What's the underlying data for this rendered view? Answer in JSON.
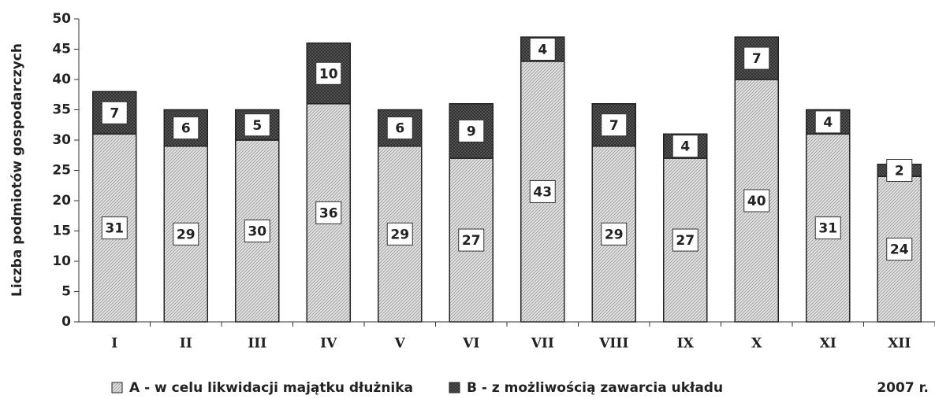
{
  "chart_data": {
    "type": "stacked_bar",
    "ylabel": "Liczba podmiotów gospodarczych",
    "categories": [
      "I",
      "II",
      "III",
      "IV",
      "V",
      "VI",
      "VII",
      "VIII",
      "IX",
      "X",
      "XI",
      "XII"
    ],
    "series": [
      {
        "name": "A - w celu likwidacji majątku dłużnika",
        "color": "#e2e2e2",
        "values": [
          31,
          29,
          30,
          36,
          29,
          27,
          43,
          29,
          27,
          40,
          31,
          24
        ]
      },
      {
        "name": "B - z możliwością zawarcia układu",
        "color": "#5a5a5a",
        "values": [
          7,
          6,
          5,
          10,
          6,
          9,
          4,
          7,
          4,
          7,
          4,
          2
        ]
      }
    ],
    "ylim": [
      0,
      50
    ],
    "yticks": [
      0,
      5,
      10,
      15,
      20,
      25,
      30,
      35,
      40,
      45,
      50
    ],
    "annotation": "2007 r."
  }
}
